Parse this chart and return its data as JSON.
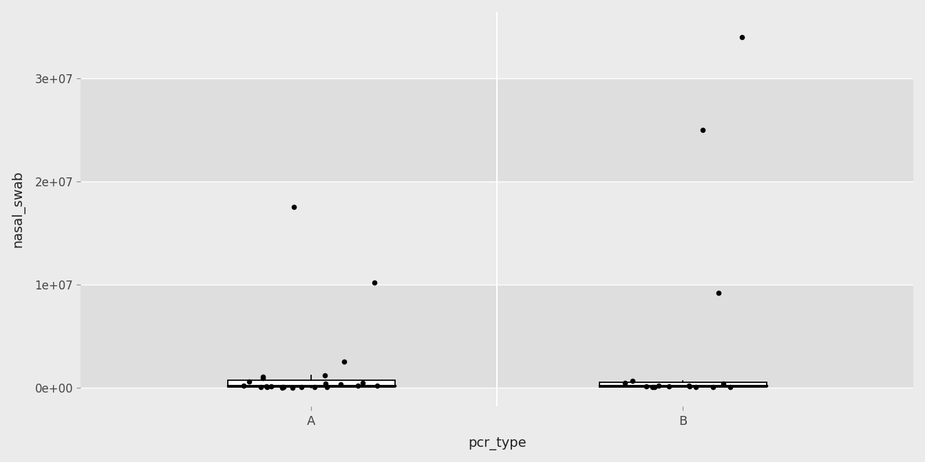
{
  "group_A": [
    17500000,
    10200000,
    2500000,
    1200000,
    1050000,
    900000,
    600000,
    450000,
    350000,
    280000,
    200000,
    180000,
    150000,
    120000,
    80000,
    70000,
    50000,
    40000,
    30000,
    20000,
    15000,
    10000,
    5000,
    3000
  ],
  "group_B": [
    34000000,
    25000000,
    9200000,
    650000,
    420000,
    350000,
    200000,
    180000,
    120000,
    90000,
    80000,
    50000,
    40000,
    30000,
    15000,
    8000
  ],
  "xlabel": "pcr_type",
  "ylabel": "nasal_swab",
  "xtick_labels": [
    "A",
    "B"
  ],
  "ylim_min": -1800000,
  "ylim_max": 36500000,
  "yticks": [
    0,
    10000000,
    20000000,
    30000000
  ],
  "ytick_labels": [
    "0e+00",
    "1e+07",
    "2e+07",
    "3e+07"
  ],
  "background_color": "#EBEBEB",
  "strip_light": "#EBEBEB",
  "strip_dark": "#DEDEDE",
  "box_fill": "#FFFFFF",
  "box_edge": "#000000",
  "point_color": "#000000",
  "grid_color": "#FFFFFF",
  "panel_sep_color": "#FFFFFF",
  "box_width": 0.45,
  "lw": 1.3,
  "point_size": 30
}
